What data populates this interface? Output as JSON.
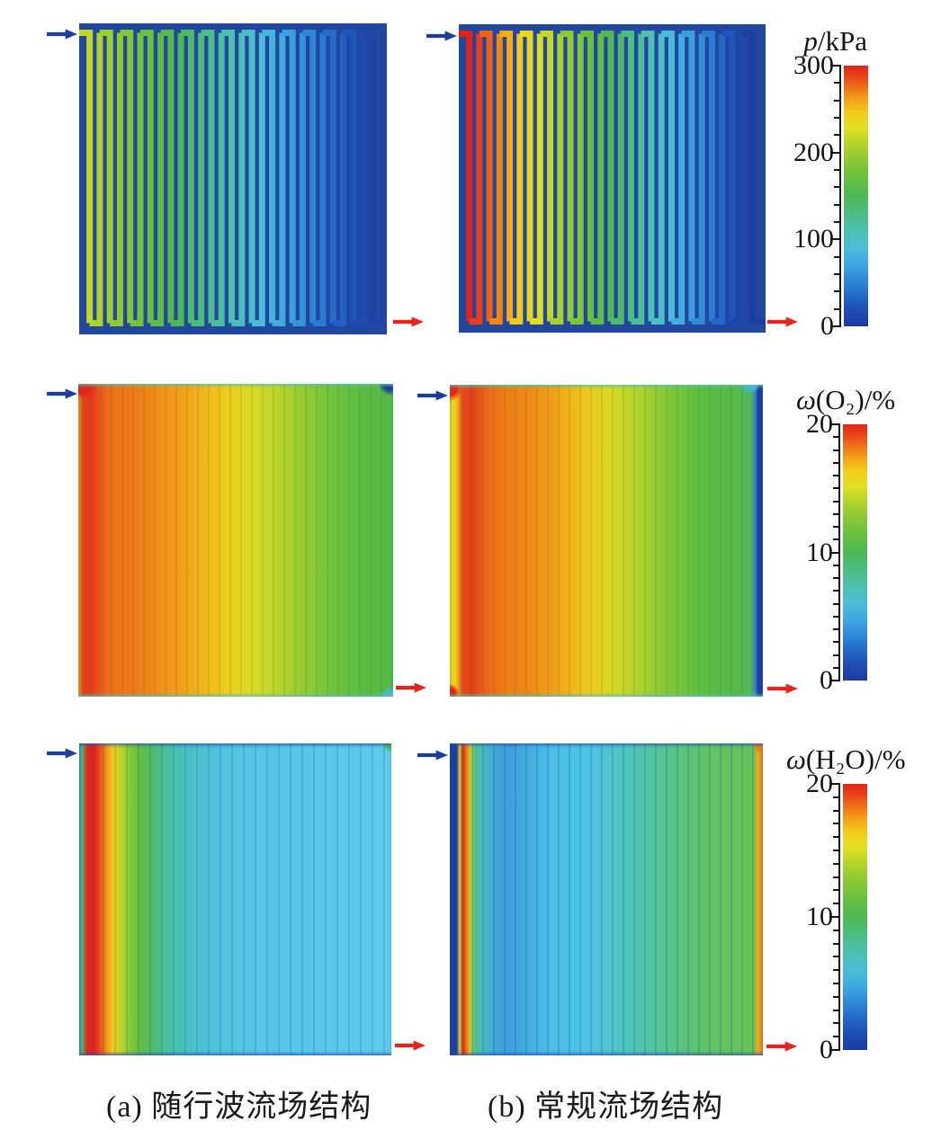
{
  "figure": {
    "captions": [
      {
        "label": "(a) 随行波流场结构"
      },
      {
        "label": "(b) 常规流场结构"
      }
    ],
    "inlet_arrow_color": "#1e3f99",
    "outlet_arrow_color": "#e8231e",
    "panel_background": "#21479f"
  },
  "colormap": {
    "name": "rainbow-jet",
    "stops": [
      {
        "t": 0.0,
        "c": "#1c3aa0"
      },
      {
        "t": 0.08,
        "c": "#1f55bc"
      },
      {
        "t": 0.16,
        "c": "#2b7fd4"
      },
      {
        "t": 0.24,
        "c": "#3fa8e0"
      },
      {
        "t": 0.3,
        "c": "#4bbcd8"
      },
      {
        "t": 0.36,
        "c": "#4dc0b4"
      },
      {
        "t": 0.43,
        "c": "#4dbc84"
      },
      {
        "t": 0.5,
        "c": "#4eb854"
      },
      {
        "t": 0.57,
        "c": "#68c03e"
      },
      {
        "t": 0.64,
        "c": "#8cc934"
      },
      {
        "t": 0.7,
        "c": "#b4d42b"
      },
      {
        "t": 0.76,
        "c": "#e0df23"
      },
      {
        "t": 0.82,
        "c": "#f2cb1d"
      },
      {
        "t": 0.87,
        "c": "#f3a018"
      },
      {
        "t": 0.92,
        "c": "#ee6c19"
      },
      {
        "t": 0.96,
        "c": "#e8421b"
      },
      {
        "t": 1.0,
        "c": "#e2231a"
      }
    ]
  },
  "colorbars": [
    {
      "var": "p",
      "rest": "/kPa",
      "labels": [
        "300",
        "200",
        "100",
        "0"
      ],
      "minor_divisions": 15,
      "major_every": 5,
      "range": [
        0,
        300
      ],
      "unit": "kPa"
    },
    {
      "var": "ω",
      "rest": "(O₂)/%",
      "labels": [
        "20",
        "10",
        "0"
      ],
      "minor_divisions": 20,
      "major_every": 10,
      "range": [
        0,
        20
      ],
      "unit": "%"
    },
    {
      "var": "ω",
      "rest": "(H₂O)/%",
      "labels": [
        "20",
        "10",
        "0"
      ],
      "minor_divisions": 20,
      "major_every": 10,
      "range": [
        0,
        20
      ],
      "unit": "%"
    }
  ],
  "chart_data": [
    {
      "id": "pressure-a",
      "type": "heatmap",
      "panel": "a",
      "title": "(a) 随行波流场结构 — 压力分布",
      "quantity": "p",
      "unit": "kPa",
      "range": [
        0,
        300
      ],
      "structure": "serpentine",
      "channels": 29,
      "inlet_value": 215,
      "outlet_value": 8,
      "flow": "inlet top-left, outlet bottom-right"
    },
    {
      "id": "pressure-b",
      "type": "heatmap",
      "panel": "b",
      "title": "(b) 常规流场结构 — 压力分布",
      "quantity": "p",
      "unit": "kPa",
      "range": [
        0,
        300
      ],
      "structure": "serpentine",
      "channels": 29,
      "inlet_value": 300,
      "outlet_value": 3,
      "flow": "inlet top-left, outlet bottom-right"
    },
    {
      "id": "o2-a",
      "type": "heatmap",
      "panel": "a",
      "title": "(a) 随行波流场结构 — 氧气质量分数",
      "quantity": "ω(O₂)",
      "unit": "%",
      "range": [
        0,
        20
      ],
      "x_profile": {
        "x": [
          0,
          0.05,
          0.15,
          0.3,
          0.45,
          0.6,
          0.75,
          0.9,
          1
        ],
        "value": [
          19,
          16.5,
          16,
          15,
          13.5,
          12.2,
          11,
          10.3,
          10
        ]
      },
      "gradient_stops_pct": [
        {
          "p": 0,
          "c": "#e8a11b"
        },
        {
          "p": 1.5,
          "c": "#e3431a"
        },
        {
          "p": 4,
          "c": "#e4391a"
        },
        {
          "p": 7,
          "c": "#ea551b"
        },
        {
          "p": 10,
          "c": "#ef6e18"
        },
        {
          "p": 18,
          "c": "#f07b16"
        },
        {
          "p": 28,
          "c": "#f29417"
        },
        {
          "p": 38,
          "c": "#f3ae19"
        },
        {
          "p": 47,
          "c": "#f0cc1e"
        },
        {
          "p": 55,
          "c": "#ddd925"
        },
        {
          "p": 63,
          "c": "#bcd42b"
        },
        {
          "p": 72,
          "c": "#93ca33"
        },
        {
          "p": 81,
          "c": "#70c23c"
        },
        {
          "p": 90,
          "c": "#5cbc42"
        },
        {
          "p": 100,
          "c": "#54ba46"
        }
      ],
      "stripe": {
        "color": "rgba(40,130,60,0.16)",
        "width": 2,
        "gap": 12
      },
      "spots": [
        {
          "x": "1%",
          "y": "0%",
          "r": 18,
          "c": "#e3231a"
        },
        {
          "x": "99%",
          "y": "0%",
          "r": 13,
          "c": "#1d3da0"
        },
        {
          "x": "99%",
          "y": "100%",
          "r": 11,
          "c": "#48b8d8"
        }
      ]
    },
    {
      "id": "o2-b",
      "type": "heatmap",
      "panel": "b",
      "title": "(b) 常规流场结构 — 氧气质量分数",
      "quantity": "ω(O₂)",
      "unit": "%",
      "range": [
        0,
        20
      ],
      "x_profile": {
        "x": [
          0,
          0.03,
          0.1,
          0.25,
          0.4,
          0.55,
          0.7,
          0.85,
          0.97,
          1
        ],
        "value": [
          13,
          18.5,
          16.5,
          15.5,
          13.5,
          11.5,
          10.5,
          10,
          10,
          0.5
        ]
      },
      "gradient_stops_pct": [
        {
          "p": 0,
          "c": "#ecd21f"
        },
        {
          "p": 2,
          "c": "#eecd1e"
        },
        {
          "p": 4,
          "c": "#e84c1a"
        },
        {
          "p": 7,
          "c": "#e43c19"
        },
        {
          "p": 11,
          "c": "#ec6019"
        },
        {
          "p": 17,
          "c": "#f07c16"
        },
        {
          "p": 26,
          "c": "#f18a16"
        },
        {
          "p": 35,
          "c": "#f2a518"
        },
        {
          "p": 44,
          "c": "#f0c91d"
        },
        {
          "p": 52,
          "c": "#d8d826"
        },
        {
          "p": 61,
          "c": "#aed22d"
        },
        {
          "p": 70,
          "c": "#82c637"
        },
        {
          "p": 80,
          "c": "#60be40"
        },
        {
          "p": 90,
          "c": "#55ba45"
        },
        {
          "p": 96,
          "c": "#52b85a"
        },
        {
          "p": 97.5,
          "c": "#3e88c0"
        },
        {
          "p": 98.5,
          "c": "#1d3da0"
        },
        {
          "p": 100,
          "c": "#1d3da0"
        }
      ],
      "stripe": {
        "color": "rgba(40,130,60,0.16)",
        "width": 2,
        "gap": 12
      },
      "spots": [
        {
          "x": "0%",
          "y": "1%",
          "r": 15,
          "c": "#e3231a"
        },
        {
          "x": "0%",
          "y": "99%",
          "r": 11,
          "c": "#e3231a"
        },
        {
          "x": "96%",
          "y": "0%",
          "r": 10,
          "c": "#45b4d8"
        }
      ]
    },
    {
      "id": "h2o-a",
      "type": "heatmap",
      "panel": "a",
      "title": "(a) 随行波流场结构 — 水质量分数",
      "quantity": "ω(H₂O)",
      "unit": "%",
      "range": [
        0,
        20
      ],
      "x_profile": {
        "x": [
          0,
          0.04,
          0.08,
          0.12,
          0.2,
          0.3,
          0.45,
          0.7,
          1
        ],
        "value": [
          6,
          19.5,
          16,
          12,
          9,
          7.5,
          6.5,
          6,
          5.6
        ]
      },
      "gradient_stops_pct": [
        {
          "p": 0,
          "c": "#3f8fd0"
        },
        {
          "p": 1,
          "c": "#49b86a"
        },
        {
          "p": 2.5,
          "c": "#e3251a"
        },
        {
          "p": 5,
          "c": "#e3231a"
        },
        {
          "p": 7,
          "c": "#ec5c19"
        },
        {
          "p": 9,
          "c": "#f29a17"
        },
        {
          "p": 11,
          "c": "#eecf1e"
        },
        {
          "p": 13.5,
          "c": "#c0d62a"
        },
        {
          "p": 16,
          "c": "#8cc934"
        },
        {
          "p": 19,
          "c": "#64c03e"
        },
        {
          "p": 23,
          "c": "#52bc64"
        },
        {
          "p": 27,
          "c": "#4cbe96"
        },
        {
          "p": 32,
          "c": "#48c0b4"
        },
        {
          "p": 38,
          "c": "#4ac2cc"
        },
        {
          "p": 46,
          "c": "#50c4dc"
        },
        {
          "p": 58,
          "c": "#55c6e4"
        },
        {
          "p": 75,
          "c": "#59c8e8"
        },
        {
          "p": 100,
          "c": "#5ecae9"
        }
      ],
      "stripe": {
        "color": "rgba(25,90,170,0.20)",
        "width": 2,
        "gap": 13
      },
      "spots": [
        {
          "x": "100%",
          "y": "0%",
          "r": 10,
          "c": "#52ba46"
        }
      ]
    },
    {
      "id": "h2o-b",
      "type": "heatmap",
      "panel": "b",
      "title": "(b) 常规流场结构 — 水质量分数",
      "quantity": "ω(H₂O)",
      "unit": "%",
      "range": [
        0,
        20
      ],
      "x_profile": {
        "x": [
          0,
          0.03,
          0.045,
          0.07,
          0.12,
          0.25,
          0.4,
          0.55,
          0.7,
          0.85,
          0.97,
          1
        ],
        "value": [
          1,
          10,
          19.5,
          9,
          7,
          5.5,
          5,
          6,
          7.5,
          9,
          9.8,
          16
        ]
      },
      "gradient_stops_pct": [
        {
          "p": 0,
          "c": "#1d3da0"
        },
        {
          "p": 2.2,
          "c": "#1d3da0"
        },
        {
          "p": 3.2,
          "c": "#d8dc24"
        },
        {
          "p": 4.2,
          "c": "#e3231a"
        },
        {
          "p": 5.4,
          "c": "#ee7a17"
        },
        {
          "p": 6.6,
          "c": "#c4d629"
        },
        {
          "p": 8,
          "c": "#52bc8e"
        },
        {
          "p": 10.5,
          "c": "#49bcc0"
        },
        {
          "p": 14,
          "c": "#44aad6"
        },
        {
          "p": 19,
          "c": "#3f9edc"
        },
        {
          "p": 26,
          "c": "#45b0e2"
        },
        {
          "p": 35,
          "c": "#4cc0e8"
        },
        {
          "p": 45,
          "c": "#4fc4e0"
        },
        {
          "p": 54,
          "c": "#4fc4c4"
        },
        {
          "p": 63,
          "c": "#53c4a4"
        },
        {
          "p": 72,
          "c": "#5ac483"
        },
        {
          "p": 82,
          "c": "#60c464"
        },
        {
          "p": 92,
          "c": "#63c45b"
        },
        {
          "p": 97,
          "c": "#68c356"
        },
        {
          "p": 98.6,
          "c": "#eeac1c"
        },
        {
          "p": 100,
          "c": "#e8671d"
        }
      ],
      "stripe": {
        "color": "rgba(20,80,160,0.22)",
        "width": 2,
        "gap": 12
      },
      "spots": [
        {
          "x": "100%",
          "y": "0%",
          "r": 13,
          "c": "#ee7a17"
        }
      ]
    }
  ]
}
